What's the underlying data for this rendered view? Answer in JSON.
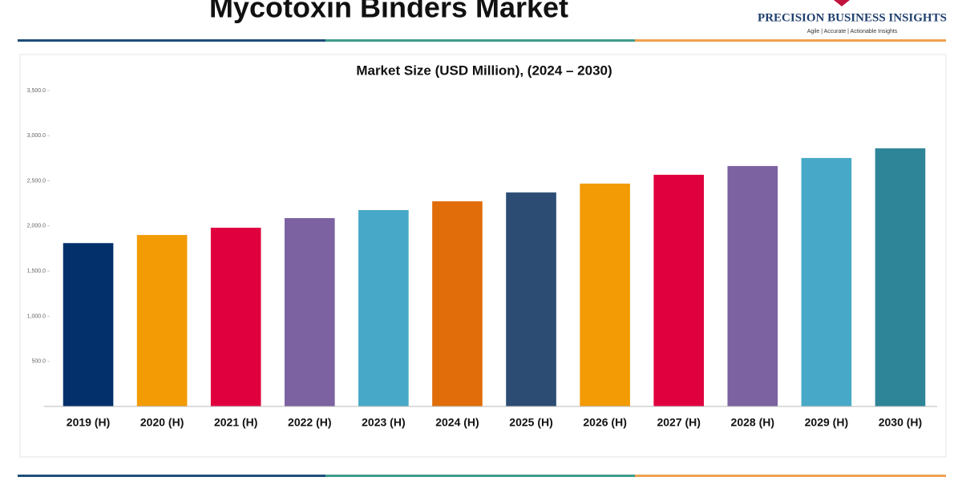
{
  "header": {
    "title": "Mycotoxin Binders Market",
    "brand": "PRECISION BUSINESS INSIGHTS",
    "tagline": "Agile | Accurate | Actionable Insights"
  },
  "chart_data": {
    "type": "bar",
    "title": "Market Size (USD Million), (2024 – 2030)",
    "categories": [
      "2019 (H)",
      "2020 (H)",
      "2021 (H)",
      "2022 (H)",
      "2023 (H)",
      "2024 (H)",
      "2025 (H)",
      "2026 (H)",
      "2027 (H)",
      "2028 (H)",
      "2029 (H)",
      "2030 (H)"
    ],
    "values": [
      1810,
      1900,
      1980,
      2087,
      2176,
      2273,
      2371,
      2469,
      2567,
      2664,
      2753,
      2860
    ],
    "colors": [
      "#03306b",
      "#f29b05",
      "#e0003e",
      "#7c62a0",
      "#47a9c7",
      "#e06c0a",
      "#2c4c74",
      "#f29b05",
      "#e0003e",
      "#7c62a0",
      "#47a9c7",
      "#2e8598"
    ],
    "ylim": [
      0,
      3500
    ],
    "yticks": [
      {
        "value": 0,
        "label": "-"
      },
      {
        "value": 500,
        "label": "500.0"
      },
      {
        "value": 1000,
        "label": "1,000.0"
      },
      {
        "value": 1500,
        "label": "1,500.0"
      },
      {
        "value": 2000,
        "label": "2,000.0"
      },
      {
        "value": 2500,
        "label": "2,500.0"
      },
      {
        "value": 3000,
        "label": "3,000.0"
      },
      {
        "value": 3500,
        "label": "3,500.0"
      }
    ],
    "grid": false
  }
}
